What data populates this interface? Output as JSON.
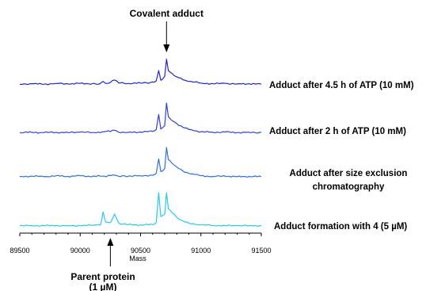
{
  "chart_data": {
    "type": "line",
    "title": "",
    "xlabel": "Mass",
    "ylabel": "",
    "xlim": [
      89500,
      91500
    ],
    "x_ticks": [
      "89500",
      "90000",
      "90500",
      "91000",
      "91500"
    ],
    "grid": false,
    "series": [
      {
        "name": "Adduct after 4.5 h of ATP (10 mM)",
        "color": "#2323c8",
        "points": [
          [
            89500,
            0.02
          ],
          [
            89600,
            0.04
          ],
          [
            89700,
            0.02
          ],
          [
            89800,
            0.05
          ],
          [
            89900,
            0.03
          ],
          [
            90000,
            0.05
          ],
          [
            90100,
            0.04
          ],
          [
            90160,
            0.03
          ],
          [
            90190,
            0.12
          ],
          [
            90210,
            0.05
          ],
          [
            90250,
            0.08
          ],
          [
            90285,
            0.17
          ],
          [
            90320,
            0.06
          ],
          [
            90400,
            0.05
          ],
          [
            90500,
            0.06
          ],
          [
            90580,
            0.08
          ],
          [
            90630,
            0.14
          ],
          [
            90650,
            0.5
          ],
          [
            90668,
            0.16
          ],
          [
            90700,
            0.3
          ],
          [
            90715,
            0.9
          ],
          [
            90730,
            0.5
          ],
          [
            90760,
            0.4
          ],
          [
            90800,
            0.28
          ],
          [
            90850,
            0.18
          ],
          [
            90900,
            0.12
          ],
          [
            90950,
            0.1
          ],
          [
            91000,
            0.06
          ],
          [
            91100,
            0.04
          ],
          [
            91200,
            0.05
          ],
          [
            91300,
            0.03
          ],
          [
            91400,
            0.04
          ],
          [
            91500,
            0.02
          ]
        ]
      },
      {
        "name": "Adduct after 2 h of ATP (10 mM)",
        "color": "#2f3fd0",
        "points": [
          [
            89500,
            0.02
          ],
          [
            89600,
            0.03
          ],
          [
            89700,
            0.02
          ],
          [
            89800,
            0.03
          ],
          [
            89900,
            0.02
          ],
          [
            90000,
            0.04
          ],
          [
            90100,
            0.02
          ],
          [
            90200,
            0.05
          ],
          [
            90285,
            0.1
          ],
          [
            90320,
            0.03
          ],
          [
            90400,
            0.03
          ],
          [
            90500,
            0.04
          ],
          [
            90600,
            0.06
          ],
          [
            90630,
            0.12
          ],
          [
            90650,
            0.62
          ],
          [
            90668,
            0.14
          ],
          [
            90700,
            0.25
          ],
          [
            90715,
            1.0
          ],
          [
            90730,
            0.55
          ],
          [
            90760,
            0.42
          ],
          [
            90800,
            0.32
          ],
          [
            90850,
            0.2
          ],
          [
            90900,
            0.12
          ],
          [
            90950,
            0.08
          ],
          [
            91000,
            0.05
          ],
          [
            91100,
            0.03
          ],
          [
            91200,
            0.04
          ],
          [
            91300,
            0.02
          ],
          [
            91400,
            0.03
          ],
          [
            91500,
            0.02
          ]
        ]
      },
      {
        "name": "Adduct after size exclusion chromatography",
        "color": "#2f6fd6",
        "points": [
          [
            89500,
            0.03
          ],
          [
            89600,
            0.05
          ],
          [
            89700,
            0.03
          ],
          [
            89800,
            0.06
          ],
          [
            89900,
            0.04
          ],
          [
            90000,
            0.06
          ],
          [
            90100,
            0.04
          ],
          [
            90200,
            0.05
          ],
          [
            90285,
            0.08
          ],
          [
            90320,
            0.04
          ],
          [
            90400,
            0.05
          ],
          [
            90500,
            0.06
          ],
          [
            90600,
            0.08
          ],
          [
            90630,
            0.14
          ],
          [
            90650,
            0.62
          ],
          [
            90668,
            0.2
          ],
          [
            90700,
            0.3
          ],
          [
            90715,
            1.0
          ],
          [
            90730,
            0.6
          ],
          [
            90760,
            0.48
          ],
          [
            90800,
            0.35
          ],
          [
            90850,
            0.22
          ],
          [
            90900,
            0.14
          ],
          [
            90950,
            0.1
          ],
          [
            91000,
            0.06
          ],
          [
            91100,
            0.04
          ],
          [
            91200,
            0.05
          ],
          [
            91300,
            0.03
          ],
          [
            91400,
            0.04
          ],
          [
            91500,
            0.03
          ]
        ]
      },
      {
        "name": "Adduct formation with 4 (5 µM)",
        "color": "#27c8ef",
        "points": [
          [
            89500,
            0.01
          ],
          [
            89600,
            0.01
          ],
          [
            89700,
            0.01
          ],
          [
            89800,
            0.01
          ],
          [
            89900,
            0.01
          ],
          [
            90000,
            0.01
          ],
          [
            90100,
            0.02
          ],
          [
            90170,
            0.04
          ],
          [
            90190,
            0.42
          ],
          [
            90210,
            0.12
          ],
          [
            90250,
            0.1
          ],
          [
            90285,
            0.36
          ],
          [
            90320,
            0.08
          ],
          [
            90400,
            0.04
          ],
          [
            90500,
            0.03
          ],
          [
            90600,
            0.04
          ],
          [
            90630,
            0.1
          ],
          [
            90650,
            1.0
          ],
          [
            90668,
            0.28
          ],
          [
            90700,
            0.35
          ],
          [
            90715,
            1.0
          ],
          [
            90730,
            0.52
          ],
          [
            90760,
            0.4
          ],
          [
            90800,
            0.26
          ],
          [
            90850,
            0.15
          ],
          [
            90900,
            0.08
          ],
          [
            90950,
            0.05
          ],
          [
            91000,
            0.03
          ],
          [
            91100,
            0.02
          ],
          [
            91200,
            0.01
          ],
          [
            91300,
            0.01
          ],
          [
            91400,
            0.01
          ],
          [
            91500,
            0.01
          ]
        ]
      }
    ],
    "annotations": {
      "top": "Covalent adduct",
      "top_x": 90715,
      "bottom": "Parent protein",
      "bottom_sub": "(1 µM)",
      "bottom_x": 90250
    },
    "colors": {
      "axis": "#000000",
      "background": "#ffffff"
    }
  }
}
